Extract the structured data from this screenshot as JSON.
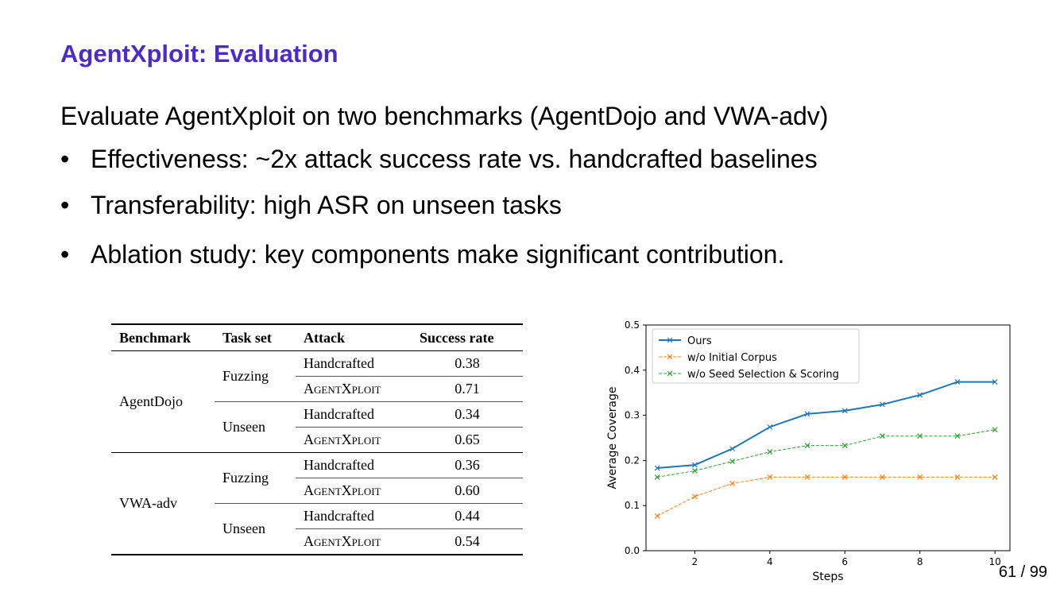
{
  "slide": {
    "title": "AgentXploit: Evaluation",
    "intro": "Evaluate AgentXploit on two benchmarks (AgentDojo and VWA-adv)",
    "bullet_symbol": "•",
    "bullets": [
      "Effectiveness: ~2x attack success rate vs. handcrafted baselines",
      "Transferability: high ASR on unseen tasks",
      "Ablation study: key components make significant contribution."
    ],
    "page_number": "61 / 99"
  },
  "table": {
    "headers": [
      "Benchmark",
      "Task set",
      "Attack",
      "Success rate"
    ],
    "groups": [
      {
        "benchmark": "AgentDojo",
        "tasksets": [
          {
            "name": "Fuzzing",
            "rows": [
              {
                "attack": "Handcrafted",
                "rate": "0.38"
              },
              {
                "attack": "AgentXploit",
                "rate": "0.71"
              }
            ]
          },
          {
            "name": "Unseen",
            "rows": [
              {
                "attack": "Handcrafted",
                "rate": "0.34"
              },
              {
                "attack": "AgentXploit",
                "rate": "0.65"
              }
            ]
          }
        ]
      },
      {
        "benchmark": "VWA-adv",
        "tasksets": [
          {
            "name": "Fuzzing",
            "rows": [
              {
                "attack": "Handcrafted",
                "rate": "0.36"
              },
              {
                "attack": "AgentXploit",
                "rate": "0.60"
              }
            ]
          },
          {
            "name": "Unseen",
            "rows": [
              {
                "attack": "Handcrafted",
                "rate": "0.44"
              },
              {
                "attack": "AgentXploit",
                "rate": "0.54"
              }
            ]
          }
        ]
      }
    ]
  },
  "chart_data": {
    "type": "line",
    "xlabel": "Steps",
    "ylabel": "Average Coverage",
    "xlim": [
      0.7,
      10.4
    ],
    "ylim": [
      0.0,
      0.5
    ],
    "xticks": [
      2,
      4,
      6,
      8,
      10
    ],
    "yticks": [
      0.0,
      0.1,
      0.2,
      0.3,
      0.4,
      0.5
    ],
    "grid": false,
    "legend_position": "top-left",
    "x": [
      1,
      2,
      3,
      4,
      5,
      6,
      7,
      8,
      9,
      10
    ],
    "series": [
      {
        "name": "Ours",
        "color": "#1f77b4",
        "style": "solid",
        "marker": "x",
        "values": [
          0.183,
          0.19,
          0.226,
          0.274,
          0.303,
          0.31,
          0.324,
          0.345,
          0.374,
          0.374
        ]
      },
      {
        "name": "w/o Initial Corpus",
        "color": "#ff7f0e",
        "style": "dashed",
        "marker": "x",
        "values": [
          0.077,
          0.12,
          0.149,
          0.163,
          0.163,
          0.163,
          0.163,
          0.163,
          0.163,
          0.163
        ]
      },
      {
        "name": "w/o Seed Selection & Scoring",
        "color": "#2ca02c",
        "style": "dashed",
        "marker": "x",
        "values": [
          0.163,
          0.177,
          0.198,
          0.219,
          0.233,
          0.233,
          0.254,
          0.254,
          0.254,
          0.268
        ]
      }
    ]
  }
}
